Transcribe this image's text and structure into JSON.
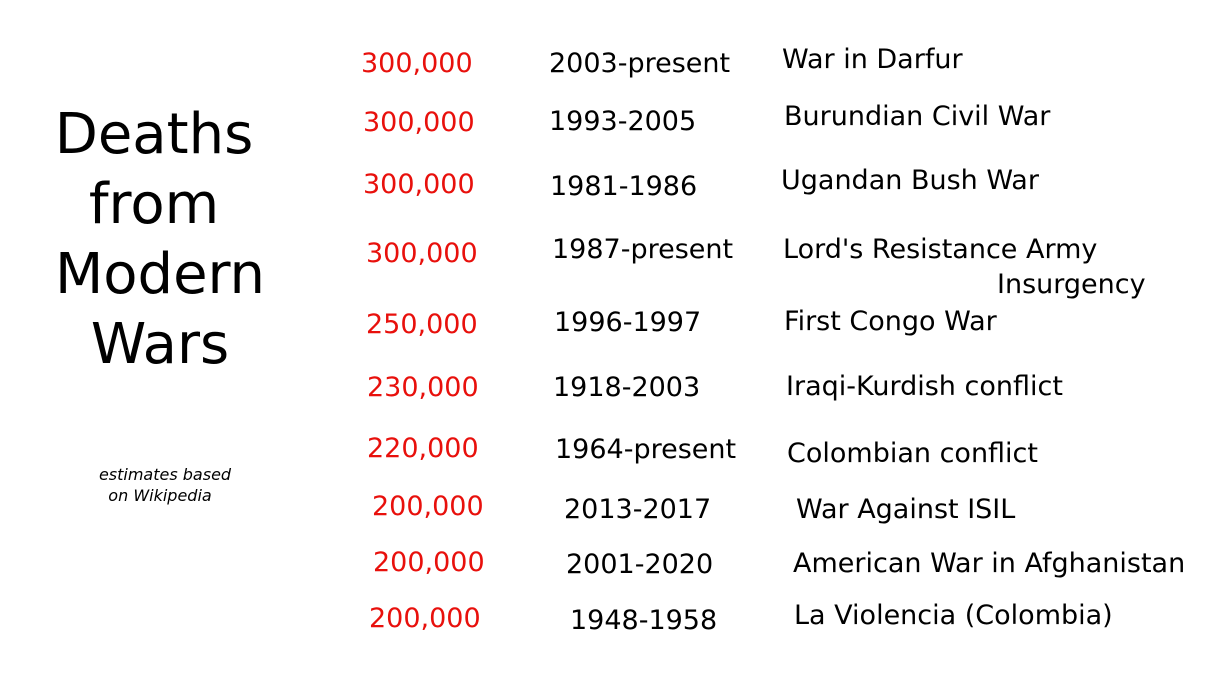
{
  "title": {
    "line1": "Deaths",
    "line2": "from",
    "line3": "Modern",
    "line4": "Wars"
  },
  "note": {
    "line1": "estimates based",
    "line2": "on Wikipedia"
  },
  "colors": {
    "deaths": "#e8100c",
    "text": "#000000"
  },
  "rows": [
    {
      "deaths": "300,000",
      "years": "2003-present",
      "war": "War in Darfur"
    },
    {
      "deaths": "300,000",
      "years": "1993-2005",
      "war": "Burundian Civil War"
    },
    {
      "deaths": "300,000",
      "years": "1981-1986",
      "war": "Ugandan Bush War"
    },
    {
      "deaths": "300,000",
      "years": "1987-present",
      "war": "Lord's Resistance Army",
      "war_line2": "Insurgency"
    },
    {
      "deaths": "250,000",
      "years": "1996-1997",
      "war": "First Congo War"
    },
    {
      "deaths": "230,000",
      "years": "1918-2003",
      "war": "Iraqi-Kurdish conflict"
    },
    {
      "deaths": "220,000",
      "years": "1964-present",
      "war": "Colombian conflict"
    },
    {
      "deaths": "200,000",
      "years": "2013-2017",
      "war": "War Against ISIL"
    },
    {
      "deaths": "200,000",
      "years": "2001-2020",
      "war": "American War in Afghanistan"
    },
    {
      "deaths": "200,000",
      "years": "1948-1958",
      "war": "La Violencia (Colombia)"
    }
  ]
}
